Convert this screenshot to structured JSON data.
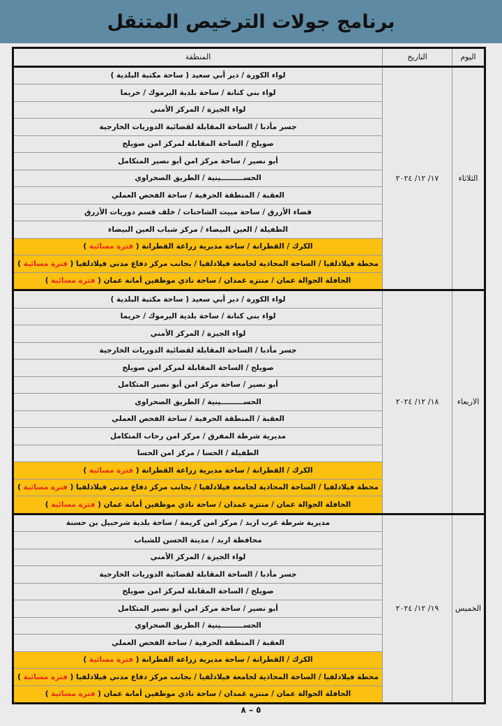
{
  "title": "برنامج جولات الترخيص المتنقل",
  "headers": {
    "day": "اليوم",
    "date": "التاريخ",
    "region": "المنطقة"
  },
  "colors": {
    "header_band": "#5f8aa3",
    "evening_highlight": "#fcc010",
    "evening_note": "#e8261e"
  },
  "sections": [
    {
      "day": "الثلاثاء",
      "date": "١٧/ ١٢/ ٢٠٢٤",
      "rows": [
        {
          "text": "لواء الكورة /  دير أبي سعيد ( ساحة مكتبة البلدية )"
        },
        {
          "text": "لواء بني كنانة / ساحة بلدية اليرموك / حريما"
        },
        {
          "text": "لواء الجيزة /  المركز الأمني"
        },
        {
          "text": "جسر مأدبا /  الساحة المقابلة لقضائية الدوريات الخارجية"
        },
        {
          "text": "صويلح /  الساحة المقابلة لمركز امن صويلح"
        },
        {
          "text": "أبو نصير /  ساحة مركز امن أبو نصير المتكامل"
        },
        {
          "text": "الحســـــــــينية /  الطريق الصحراوي"
        },
        {
          "text": "العقبة /  المنطقة الحرفية /  ساحة الفحص العملي"
        },
        {
          "text": "قضاء الأزرق / ساحة مبيت الشاحنات /  خلف قسم دوريات الأزرق"
        },
        {
          "text": "الطفيلة /   العين البيضاء / مركز شباب العين البيضاء"
        },
        {
          "text": "الكرك /  القطرانة /  ساحة مديرية زراعة القطرانة",
          "note": "فترة مسائية"
        },
        {
          "text": "محطة فيلادلفيا / الساحة المحاذية لجامعة فيلادلفيا /  بجانب مركز دفاع مدني فيلادلفيا",
          "note": "فترة مسائية"
        },
        {
          "text": "الحافلة الجوالة عمان /  منتزه غمدان / ساحة نادي موظفين أمانة عمان",
          "note": "فترة مسائية"
        }
      ]
    },
    {
      "day": "الاربعاء",
      "date": "١٨/ ١٢/ ٢٠٢٤",
      "rows": [
        {
          "text": "لواء الكورة /  دير أبي سعيد ( ساحة مكتبة البلدية )"
        },
        {
          "text": "لواء بني كنانة / ساحة بلدية اليرموك / حريما"
        },
        {
          "text": "لواء الجيزة /  المركز الأمني"
        },
        {
          "text": "جسر مأدبا /  الساحة المقابلة لقضائية الدوريات الخارجية"
        },
        {
          "text": "صويلح /  الساحة المقابلة لمركز امن صويلح"
        },
        {
          "text": "أبو نصير /  ساحة مركز امن أبو نصير المتكامل"
        },
        {
          "text": "الحســـــــــينية /  الطريق الصحراوي"
        },
        {
          "text": "العقبة /  المنطقة الحرفية /  ساحة الفحص العملي"
        },
        {
          "text": "مديرية شرطة المفرق / مركز امن رحاب المتكامل"
        },
        {
          "text": "الطفيلة /  الحسا / مركز امن الحسا"
        },
        {
          "text": "الكرك /  القطرانة /  ساحة مديرية زراعة القطرانة",
          "note": "فترة مسائية"
        },
        {
          "text": "محطة فيلادلفيا / الساحة المحاذية لجامعة فيلادلفيا /  بجانب مركز دفاع مدني فيلادلفيا",
          "note": "فترة مسائية"
        },
        {
          "text": "الحافلة الجوالة عمان /  منتزه غمدان / ساحة نادي موظفين أمانة عمان",
          "note": "فترة مسائية"
        }
      ]
    },
    {
      "day": "الخميس",
      "date": "١٩/ ١٢/ ٢٠٢٤",
      "rows": [
        {
          "text": "مديرية شرطة غرب اربد /  مركز امن كريمة / ساحة بلدية شرحبيل بن حسنة"
        },
        {
          "text": "محافظة اربد /  مدينة الحسن للشباب"
        },
        {
          "text": "لواء الجيزة /  المركز الأمني"
        },
        {
          "text": "جسر مأدبا /  الساحة المقابلة لقضائية الدوريات الخارجية"
        },
        {
          "text": "صويلح /  الساحة المقابلة لمركز امن صويلح"
        },
        {
          "text": "أبو نصير /  ساحة مركز امن أبو نصير المتكامل"
        },
        {
          "text": "الحســـــــــينية /  الطريق الصحراوي"
        },
        {
          "text": "العقبة /  المنطقة الحرفية /  ساحة الفحص العملي"
        },
        {
          "text": "الكرك /  القطرانة /  ساحة مديرية زراعة القطرانة",
          "note": "فترة مسائية"
        },
        {
          "text": "محطة فيلادلفيا / الساحة المحاذية لجامعة فيلادلفيا /  بجانب مركز دفاع مدني فيلادلفيا",
          "note": "فترة مسائية"
        },
        {
          "text": "الحافلة الجوالة عمان /  منتزه غمدان / ساحة نادي موظفين أمانة عمان",
          "note": "فترة مسائية"
        }
      ]
    }
  ],
  "footer": "٥ – ٨"
}
